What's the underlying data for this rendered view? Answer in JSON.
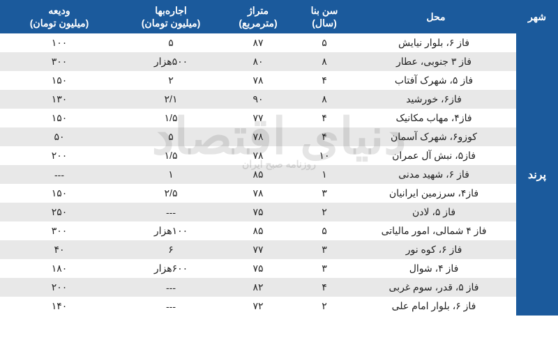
{
  "type": "table",
  "colors": {
    "header_bg": "#1b5a9c",
    "header_text": "#ffffff",
    "row_odd_bg": "#ffffff",
    "row_even_bg": "#e8e8e8",
    "text": "#222222",
    "watermark": "rgba(0,0,0,0.10)"
  },
  "watermark": {
    "main": "دنیای اقتصاد",
    "sub": "روزنامه صبح ایران"
  },
  "headers": {
    "city": "شهر",
    "mahall": "محل",
    "age": "سن بنا\n(سال)",
    "area": "متراژ\n(مترمربع)",
    "rent": "اجاره‌بها\n(میلیون تومان)",
    "dep": "ودیعه\n(میلیون تومان)"
  },
  "city": "پرند",
  "rows": [
    {
      "mahall": "فاز ۶، بلوار نیایش",
      "age": "۵",
      "area": "۸۷",
      "rent": "۵",
      "dep": "۱۰۰"
    },
    {
      "mahall": "فاز ۳ جنوبی، عطار",
      "age": "۸",
      "area": "۸۰",
      "rent": "۵۰۰هزار",
      "dep": "۳۰۰"
    },
    {
      "mahall": "فاز ۵، شهرک آفتاب",
      "age": "۴",
      "area": "۷۸",
      "rent": "۲",
      "dep": "۱۵۰"
    },
    {
      "mahall": "فاز۶، خورشید",
      "age": "۸",
      "area": "۹۰",
      "rent": "۲/۱",
      "dep": "۱۳۰"
    },
    {
      "mahall": "فاز۴، مهاب مکانیک",
      "age": "۴",
      "area": "۷۷",
      "rent": "۱/۵",
      "dep": "۱۵۰"
    },
    {
      "mahall": "کوزو۶، شهرک آسمان",
      "age": "۴",
      "area": "۷۸",
      "rent": "۵",
      "dep": "۵۰"
    },
    {
      "mahall": "فاز۵، نبش آل عمران",
      "age": "۱۰",
      "area": "۷۸",
      "rent": "۱/۵",
      "dep": "۲۰۰"
    },
    {
      "mahall": "فاز ۶، شهید مدنی",
      "age": "۱",
      "area": "۸۵",
      "rent": "۱",
      "dep": "---"
    },
    {
      "mahall": "فاز۴، سرزمین ایرانیان",
      "age": "۳",
      "area": "۷۸",
      "rent": "۲/۵",
      "dep": "۱۵۰"
    },
    {
      "mahall": "فاز ۵، لادن",
      "age": "۲",
      "area": "۷۵",
      "rent": "---",
      "dep": "۲۵۰"
    },
    {
      "mahall": "فاز ۴ شمالی، امور مالیاتی",
      "age": "۵",
      "area": "۸۵",
      "rent": "۱۰۰هزار",
      "dep": "۳۰۰"
    },
    {
      "mahall": "فاز ۶، کوه نور",
      "age": "۳",
      "area": "۷۷",
      "rent": "۶",
      "dep": "۴۰"
    },
    {
      "mahall": "فاز ۴، شوال",
      "age": "۳",
      "area": "۷۵",
      "rent": "۶۰۰هزار",
      "dep": "۱۸۰"
    },
    {
      "mahall": "فاز ۵، قدر، سوم غربی",
      "age": "۴",
      "area": "۸۲",
      "rent": "---",
      "dep": "۲۰۰"
    },
    {
      "mahall": "فاز ۶، بلوار امام علی",
      "age": "۲",
      "area": "۷۲",
      "rent": "---",
      "dep": "۱۴۰"
    }
  ]
}
